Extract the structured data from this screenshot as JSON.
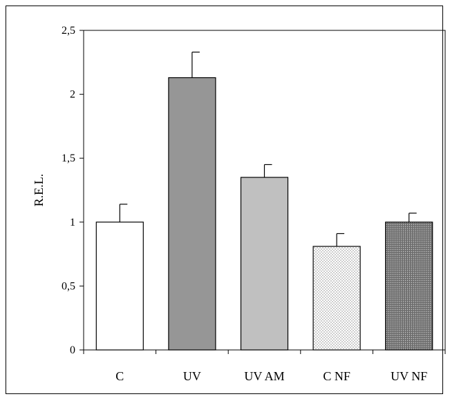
{
  "chart_data": {
    "type": "bar",
    "title": "",
    "xlabel": "",
    "ylabel": "R.E.L.",
    "ylim": [
      0,
      2.5
    ],
    "yticks": [
      "0",
      "0,5",
      "1",
      "1,5",
      "2",
      "2,5"
    ],
    "ytick_values": [
      0,
      0.5,
      1,
      1.5,
      2,
      2.5
    ],
    "categories": [
      "C",
      "UV",
      "UV AM",
      "C NF",
      "UV NF"
    ],
    "values": [
      1.0,
      2.13,
      1.35,
      0.81,
      1.0
    ],
    "errors": [
      0.14,
      0.2,
      0.1,
      0.1,
      0.07
    ],
    "fills": [
      "white",
      "dark-gray",
      "light-gray",
      "dotted",
      "dark-crosshatch"
    ],
    "colors": {
      "dark_gray": "#969696",
      "light_gray": "#c0c0c0",
      "outline": "#000000"
    },
    "grid": false,
    "legend": "none"
  }
}
